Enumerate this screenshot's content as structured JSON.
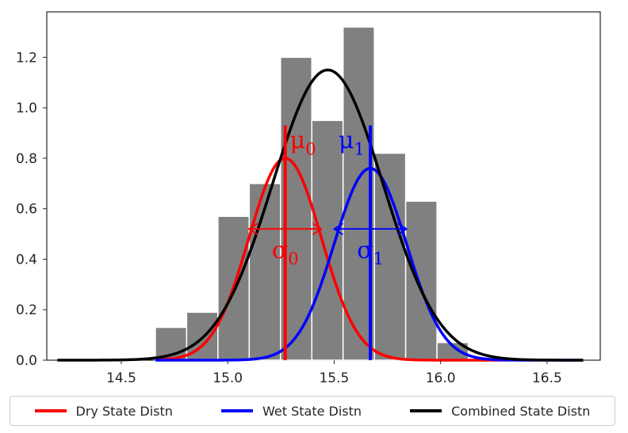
{
  "chart_data": {
    "type": "histogram",
    "title": "",
    "xlabel": "",
    "ylabel": "",
    "xlim": [
      14.15,
      16.75
    ],
    "ylim": [
      0,
      1.38
    ],
    "x_ticks": [
      14.5,
      15.0,
      15.5,
      16.0,
      16.5
    ],
    "x_tick_labels": [
      "14.5",
      "15.0",
      "15.5",
      "16.0",
      "16.5"
    ],
    "y_ticks": [
      0,
      0.2,
      0.4,
      0.6,
      0.8,
      1.0,
      1.2
    ],
    "y_tick_labels": [
      "0.0",
      "0.2",
      "0.4",
      "0.6",
      "0.8",
      "1.0",
      "1.2"
    ],
    "grid": false,
    "histogram": {
      "bin_edges": [
        14.66,
        14.807,
        14.954,
        15.101,
        15.248,
        15.395,
        15.542,
        15.689,
        15.836,
        15.983,
        16.13
      ],
      "values": [
        0.13,
        0.19,
        0.57,
        0.7,
        1.2,
        0.95,
        1.32,
        0.82,
        0.63,
        0.07
      ],
      "color": "#808080"
    },
    "series": [
      {
        "name": "Dry State Distn",
        "color": "#ff0000",
        "mean": 15.27,
        "sd": 0.17,
        "peak": 0.8,
        "x_range": [
          14.66,
          16.32
        ]
      },
      {
        "name": "Wet State Distn",
        "color": "#0000ff",
        "mean": 15.67,
        "sd": 0.17,
        "peak": 0.76,
        "x_range": [
          14.66,
          16.67
        ]
      },
      {
        "name": "Combined State Distn",
        "color": "#000000",
        "mean": 15.47,
        "sd": 0.26,
        "peak": 1.15,
        "x_range": [
          14.2,
          16.67
        ]
      }
    ],
    "annotations": {
      "mu0": {
        "symbol": "μ",
        "sub": "0",
        "color": "#ff0000",
        "x": 15.27,
        "y_top": 0.93
      },
      "mu1": {
        "symbol": "μ",
        "sub": "1",
        "color": "#0000ff",
        "x": 15.67,
        "y_top": 0.93
      },
      "sigma0": {
        "symbol": "σ",
        "sub": "0",
        "color": "#ff0000",
        "x_from": 15.1,
        "x_to": 15.44,
        "y": 0.52
      },
      "sigma1": {
        "symbol": "σ",
        "sub": "1",
        "color": "#0000ff",
        "x_from": 15.5,
        "x_to": 15.84,
        "y": 0.52
      }
    },
    "legend_position": "bottom-outside"
  },
  "legend": {
    "items": [
      {
        "label": "Dry State Distn",
        "color": "#ff0000"
      },
      {
        "label": "Wet State Distn",
        "color": "#0000ff"
      },
      {
        "label": "Combined State Distn",
        "color": "#000000"
      }
    ]
  }
}
